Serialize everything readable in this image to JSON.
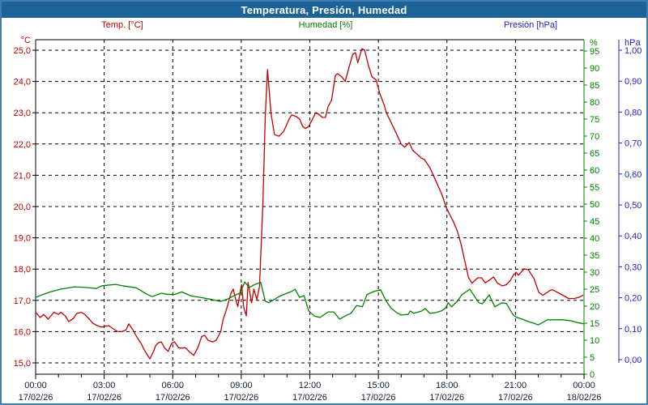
{
  "window_title": "Temperatura, Presión, Humedad",
  "colors": {
    "titlebar_bg": "#1d6398",
    "frame_border": "#3f7cb6",
    "temperature": "#c00000",
    "humidity": "#008000",
    "pressure": "#2222cc",
    "x_label_text": "#0b1f33",
    "grid": "#000000"
  },
  "chart_data": {
    "type": "line",
    "title": "Temperatura, Presión, Humedad",
    "grid": "dashed black, horizontal per 1.0 °C, vertical per 3 h",
    "legend_position": "top",
    "axes": {
      "temp": {
        "unit": "°C",
        "color": "#c00000",
        "side": "left",
        "range": [
          15.0,
          25.0
        ],
        "ticks": [
          {
            "v": 25.0,
            "label": "25,0"
          },
          {
            "v": 24.0,
            "label": "24,0"
          },
          {
            "v": 23.0,
            "label": "23,0"
          },
          {
            "v": 22.0,
            "label": "22,0"
          },
          {
            "v": 21.0,
            "label": "21,0"
          },
          {
            "v": 20.0,
            "label": "20,0"
          },
          {
            "v": 19.0,
            "label": "19,0"
          },
          {
            "v": 18.0,
            "label": "18,0"
          },
          {
            "v": 17.0,
            "label": "17,0"
          },
          {
            "v": 16.0,
            "label": "16,0"
          },
          {
            "v": 15.0,
            "label": "15,0"
          }
        ]
      },
      "hum": {
        "unit": "%",
        "color": "#008000",
        "side": "right-inner",
        "range": [
          0,
          95
        ],
        "ticks": [
          {
            "v": 95,
            "label": "95"
          },
          {
            "v": 90,
            "label": "90"
          },
          {
            "v": 85,
            "label": "85"
          },
          {
            "v": 80,
            "label": "80"
          },
          {
            "v": 75,
            "label": "75"
          },
          {
            "v": 70,
            "label": "70"
          },
          {
            "v": 65,
            "label": "65"
          },
          {
            "v": 60,
            "label": "60"
          },
          {
            "v": 55,
            "label": "55"
          },
          {
            "v": 50,
            "label": "50"
          },
          {
            "v": 45,
            "label": "45"
          },
          {
            "v": 40,
            "label": "40"
          },
          {
            "v": 35,
            "label": "35"
          },
          {
            "v": 30,
            "label": "30"
          },
          {
            "v": 25,
            "label": "25"
          },
          {
            "v": 20,
            "label": "20"
          },
          {
            "v": 15,
            "label": "15"
          },
          {
            "v": 10,
            "label": "10"
          },
          {
            "v": 5,
            "label": "5"
          },
          {
            "v": 0,
            "label": "0"
          }
        ]
      },
      "pres": {
        "unit": "hPa",
        "color": "#2222cc",
        "side": "right-outer",
        "range": [
          0.0,
          1.0
        ],
        "ticks": [
          {
            "v": 1.0,
            "label": "1,00"
          },
          {
            "v": 0.9,
            "label": "0,90"
          },
          {
            "v": 0.8,
            "label": "0,80"
          },
          {
            "v": 0.7,
            "label": "0,70"
          },
          {
            "v": 0.6,
            "label": "0,60"
          },
          {
            "v": 0.5,
            "label": "0,50"
          },
          {
            "v": 0.4,
            "label": "0,40"
          },
          {
            "v": 0.3,
            "label": "0,30"
          },
          {
            "v": 0.2,
            "label": "0,20"
          },
          {
            "v": 0.1,
            "label": "0,10"
          },
          {
            "v": 0.0,
            "label": "0,00"
          }
        ]
      },
      "x": {
        "span_hours": 24,
        "major_tick_hours": 3,
        "minor_tick_hours": 1,
        "ticks": [
          {
            "h": 0,
            "time": "00:00",
            "date": "17/02/26"
          },
          {
            "h": 3,
            "time": "03:00",
            "date": "17/02/26"
          },
          {
            "h": 6,
            "time": "06:00",
            "date": "17/02/26"
          },
          {
            "h": 9,
            "time": "09:00",
            "date": "17/02/26"
          },
          {
            "h": 12,
            "time": "12:00",
            "date": "17/02/26"
          },
          {
            "h": 15,
            "time": "15:00",
            "date": "17/02/26"
          },
          {
            "h": 18,
            "time": "18:00",
            "date": "17/02/26"
          },
          {
            "h": 21,
            "time": "21:00",
            "date": "17/02/26"
          },
          {
            "h": 24,
            "time": "00:00",
            "date": "18/02/26"
          }
        ]
      }
    },
    "series": [
      {
        "name": "Temp. [°C]",
        "axis": "temp",
        "color": "#c00000",
        "points": [
          [
            0,
            16.62
          ],
          [
            0.2,
            16.45
          ],
          [
            0.35,
            16.55
          ],
          [
            0.55,
            16.4
          ],
          [
            0.8,
            16.62
          ],
          [
            1,
            16.55
          ],
          [
            1.1,
            16.62
          ],
          [
            1.3,
            16.5
          ],
          [
            1.45,
            16.32
          ],
          [
            1.65,
            16.42
          ],
          [
            1.8,
            16.58
          ],
          [
            2,
            16.62
          ],
          [
            2.15,
            16.55
          ],
          [
            2.35,
            16.4
          ],
          [
            2.5,
            16.27
          ],
          [
            2.7,
            16.19
          ],
          [
            2.9,
            16.14
          ],
          [
            3,
            16.17
          ],
          [
            3.2,
            16.19
          ],
          [
            3.3,
            16.14
          ],
          [
            3.5,
            16.04
          ],
          [
            3.6,
            16
          ],
          [
            3.78,
            16
          ],
          [
            3.95,
            16.05
          ],
          [
            4.08,
            16.25
          ],
          [
            4.25,
            16.06
          ],
          [
            4.35,
            15.93
          ],
          [
            4.5,
            15.75
          ],
          [
            4.62,
            15.62
          ],
          [
            4.72,
            15.47
          ],
          [
            4.85,
            15.3
          ],
          [
            5,
            15.13
          ],
          [
            5.15,
            15.35
          ],
          [
            5.25,
            15.55
          ],
          [
            5.38,
            15.65
          ],
          [
            5.5,
            15.67
          ],
          [
            5.65,
            15.47
          ],
          [
            5.8,
            15.37
          ],
          [
            5.95,
            15.62
          ],
          [
            6.08,
            15.67
          ],
          [
            6.25,
            15.49
          ],
          [
            6.4,
            15.47
          ],
          [
            6.55,
            15.49
          ],
          [
            6.75,
            15.34
          ],
          [
            6.92,
            15.24
          ],
          [
            7.1,
            15.49
          ],
          [
            7.27,
            15.85
          ],
          [
            7.4,
            15.88
          ],
          [
            7.55,
            15.72
          ],
          [
            7.75,
            15.67
          ],
          [
            7.9,
            15.72
          ],
          [
            8.1,
            16
          ],
          [
            8.2,
            16.37
          ],
          [
            8.35,
            16.7
          ],
          [
            8.45,
            16.97
          ],
          [
            8.55,
            17.23
          ],
          [
            8.65,
            17.36
          ],
          [
            8.75,
            17.05
          ],
          [
            8.85,
            16.8
          ],
          [
            8.95,
            17.28
          ],
          [
            9.02,
            17.5
          ],
          [
            9.1,
            16.8
          ],
          [
            9.22,
            16.5
          ],
          [
            9.3,
            17.57
          ],
          [
            9.45,
            16.92
          ],
          [
            9.55,
            17.36
          ],
          [
            9.68,
            17.03
          ],
          [
            9.8,
            17.44
          ],
          [
            9.95,
            20.2
          ],
          [
            10.05,
            22.9
          ],
          [
            10.15,
            24.38
          ],
          [
            10.3,
            23
          ],
          [
            10.45,
            22.3
          ],
          [
            10.65,
            22.25
          ],
          [
            10.85,
            22.4
          ],
          [
            11.1,
            22.8
          ],
          [
            11.2,
            22.93
          ],
          [
            11.4,
            22.88
          ],
          [
            11.55,
            22.8
          ],
          [
            11.7,
            22.55
          ],
          [
            11.82,
            22.5
          ],
          [
            11.95,
            22.56
          ],
          [
            12.1,
            22.77
          ],
          [
            12.25,
            23
          ],
          [
            12.4,
            22.95
          ],
          [
            12.55,
            22.85
          ],
          [
            12.68,
            22.85
          ],
          [
            12.8,
            23.2
          ],
          [
            12.95,
            23.4
          ],
          [
            13.12,
            24.2
          ],
          [
            13.22,
            24.25
          ],
          [
            13.4,
            24.15
          ],
          [
            13.55,
            24
          ],
          [
            13.75,
            24.55
          ],
          [
            13.88,
            24.87
          ],
          [
            14,
            24.92
          ],
          [
            14.1,
            24.6
          ],
          [
            14.28,
            25.05
          ],
          [
            14.4,
            25
          ],
          [
            14.57,
            24.5
          ],
          [
            14.72,
            24.15
          ],
          [
            14.9,
            24.05
          ],
          [
            15.07,
            23.6
          ],
          [
            15.25,
            23.25
          ],
          [
            15.35,
            23
          ],
          [
            15.55,
            22.7
          ],
          [
            15.78,
            22.35
          ],
          [
            16,
            22
          ],
          [
            16.15,
            21.9
          ],
          [
            16.35,
            22.05
          ],
          [
            16.5,
            21.8
          ],
          [
            16.88,
            21.55
          ],
          [
            17.02,
            21.5
          ],
          [
            17.25,
            21.25
          ],
          [
            17.5,
            20.85
          ],
          [
            17.77,
            20.4
          ],
          [
            17.98,
            19.95
          ],
          [
            18.26,
            19.55
          ],
          [
            18.44,
            19.25
          ],
          [
            18.62,
            18.8
          ],
          [
            18.8,
            18.2
          ],
          [
            18.95,
            17.72
          ],
          [
            19.1,
            17.55
          ],
          [
            19.35,
            17.72
          ],
          [
            19.52,
            17.72
          ],
          [
            19.68,
            17.56
          ],
          [
            19.85,
            17.64
          ],
          [
            20.04,
            17.75
          ],
          [
            20.2,
            17.56
          ],
          [
            20.42,
            17.46
          ],
          [
            20.6,
            17.5
          ],
          [
            20.78,
            17.64
          ],
          [
            20.92,
            17.82
          ],
          [
            21.03,
            17.9
          ],
          [
            21.13,
            17.8
          ],
          [
            21.38,
            18.01
          ],
          [
            21.56,
            17.98
          ],
          [
            21.81,
            17.7
          ],
          [
            22.02,
            17.26
          ],
          [
            22.2,
            17.16
          ],
          [
            22.52,
            17.32
          ],
          [
            22.62,
            17.34
          ],
          [
            22.98,
            17.2
          ],
          [
            23.33,
            17.06
          ],
          [
            23.58,
            17.06
          ],
          [
            23.79,
            17.1
          ],
          [
            23.95,
            17.16
          ]
        ]
      },
      {
        "name": "Humedad [%]",
        "axis": "hum",
        "color": "#008000",
        "points": [
          [
            0,
            22.6
          ],
          [
            0.3,
            23.4
          ],
          [
            0.64,
            24.2
          ],
          [
            1.1,
            25
          ],
          [
            1.7,
            25.7
          ],
          [
            2.2,
            25.5
          ],
          [
            2.65,
            25.2
          ],
          [
            2.9,
            26
          ],
          [
            3.5,
            26.4
          ],
          [
            3.8,
            26
          ],
          [
            4.4,
            25.4
          ],
          [
            4.9,
            23.4
          ],
          [
            5.1,
            22.8
          ],
          [
            5.5,
            23.8
          ],
          [
            5.75,
            23.5
          ],
          [
            6.05,
            23.4
          ],
          [
            6.4,
            24.2
          ],
          [
            6.8,
            23
          ],
          [
            7.2,
            22.6
          ],
          [
            7.6,
            22.1
          ],
          [
            8.1,
            21.4
          ],
          [
            8.4,
            22.1
          ],
          [
            8.75,
            23.3
          ],
          [
            8.95,
            23.8
          ],
          [
            9.15,
            27.1
          ],
          [
            9.35,
            25.5
          ],
          [
            9.6,
            26.4
          ],
          [
            9.85,
            27
          ],
          [
            10.05,
            21.5
          ],
          [
            10.2,
            21
          ],
          [
            10.7,
            23
          ],
          [
            11.2,
            24.3
          ],
          [
            11.35,
            25
          ],
          [
            11.55,
            22.6
          ],
          [
            11.75,
            23.1
          ],
          [
            11.95,
            18.6
          ],
          [
            12.2,
            17.1
          ],
          [
            12.45,
            16.7
          ],
          [
            12.8,
            18.3
          ],
          [
            13.05,
            18.3
          ],
          [
            13.3,
            16.2
          ],
          [
            13.6,
            17.3
          ],
          [
            13.8,
            17.9
          ],
          [
            14.05,
            20.2
          ],
          [
            14.3,
            19.8
          ],
          [
            14.5,
            23.4
          ],
          [
            14.8,
            24.3
          ],
          [
            15.1,
            24.8
          ],
          [
            15.35,
            21.4
          ],
          [
            15.55,
            19.5
          ],
          [
            15.8,
            18.1
          ],
          [
            16,
            17.4
          ],
          [
            16.3,
            17.6
          ],
          [
            16.4,
            18.6
          ],
          [
            16.55,
            17.9
          ],
          [
            16.75,
            18.3
          ],
          [
            16.9,
            18.6
          ],
          [
            17.05,
            19.3
          ],
          [
            17.25,
            17.9
          ],
          [
            17.5,
            18.1
          ],
          [
            17.75,
            18.6
          ],
          [
            17.95,
            19.5
          ],
          [
            18.05,
            21
          ],
          [
            18.2,
            19.8
          ],
          [
            18.45,
            21.4
          ],
          [
            18.65,
            23.3
          ],
          [
            19,
            25
          ],
          [
            19.4,
            21
          ],
          [
            19.55,
            20.7
          ],
          [
            19.85,
            23.3
          ],
          [
            20.1,
            19.8
          ],
          [
            20.4,
            21
          ],
          [
            20.6,
            20.8
          ],
          [
            20.9,
            17.4
          ],
          [
            21.05,
            16.7
          ],
          [
            21.3,
            16.2
          ],
          [
            21.55,
            15.5
          ],
          [
            21.8,
            15
          ],
          [
            22,
            14.5
          ],
          [
            22.4,
            16
          ],
          [
            22.65,
            16
          ],
          [
            23.1,
            16
          ],
          [
            23.45,
            15.7
          ],
          [
            23.7,
            15.2
          ],
          [
            24,
            14.8
          ]
        ]
      },
      {
        "name": "Presión [hPa]",
        "axis": "pres",
        "color": "#2222cc",
        "points": []
      }
    ]
  }
}
